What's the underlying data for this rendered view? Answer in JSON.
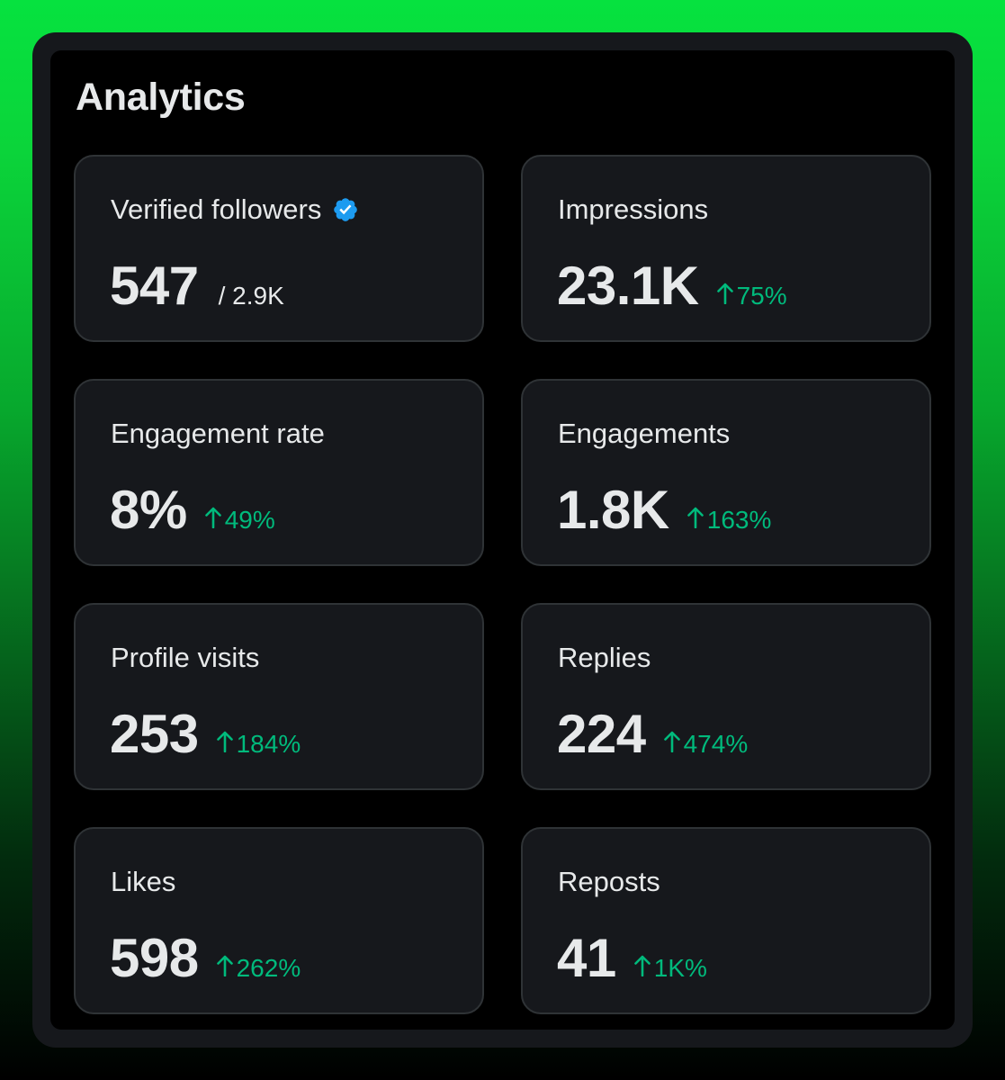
{
  "header": {
    "title": "Analytics"
  },
  "colors": {
    "positive": "#00ba7c",
    "verified_badge": "#1d9bf0",
    "card_background": "#16181c",
    "card_border": "#2f3336",
    "text_primary": "#e7e9ea"
  },
  "cards": [
    {
      "label": "Verified followers",
      "value": "547",
      "total": "/ 2.9K",
      "icon": "verified-badge-icon"
    },
    {
      "label": "Impressions",
      "value": "23.1K",
      "change": "75%",
      "change_icon": "arrow-up-icon"
    },
    {
      "label": "Engagement rate",
      "value": "8%",
      "change": "49%",
      "change_icon": "arrow-up-icon"
    },
    {
      "label": "Engagements",
      "value": "1.8K",
      "change": "163%",
      "change_icon": "arrow-up-icon"
    },
    {
      "label": "Profile visits",
      "value": "253",
      "change": "184%",
      "change_icon": "arrow-up-icon"
    },
    {
      "label": "Replies",
      "value": "224",
      "change": "474%",
      "change_icon": "arrow-up-icon"
    },
    {
      "label": "Likes",
      "value": "598",
      "change": "262%",
      "change_icon": "arrow-up-icon"
    },
    {
      "label": "Reposts",
      "value": "41",
      "change": "1K%",
      "change_icon": "arrow-up-icon"
    }
  ]
}
